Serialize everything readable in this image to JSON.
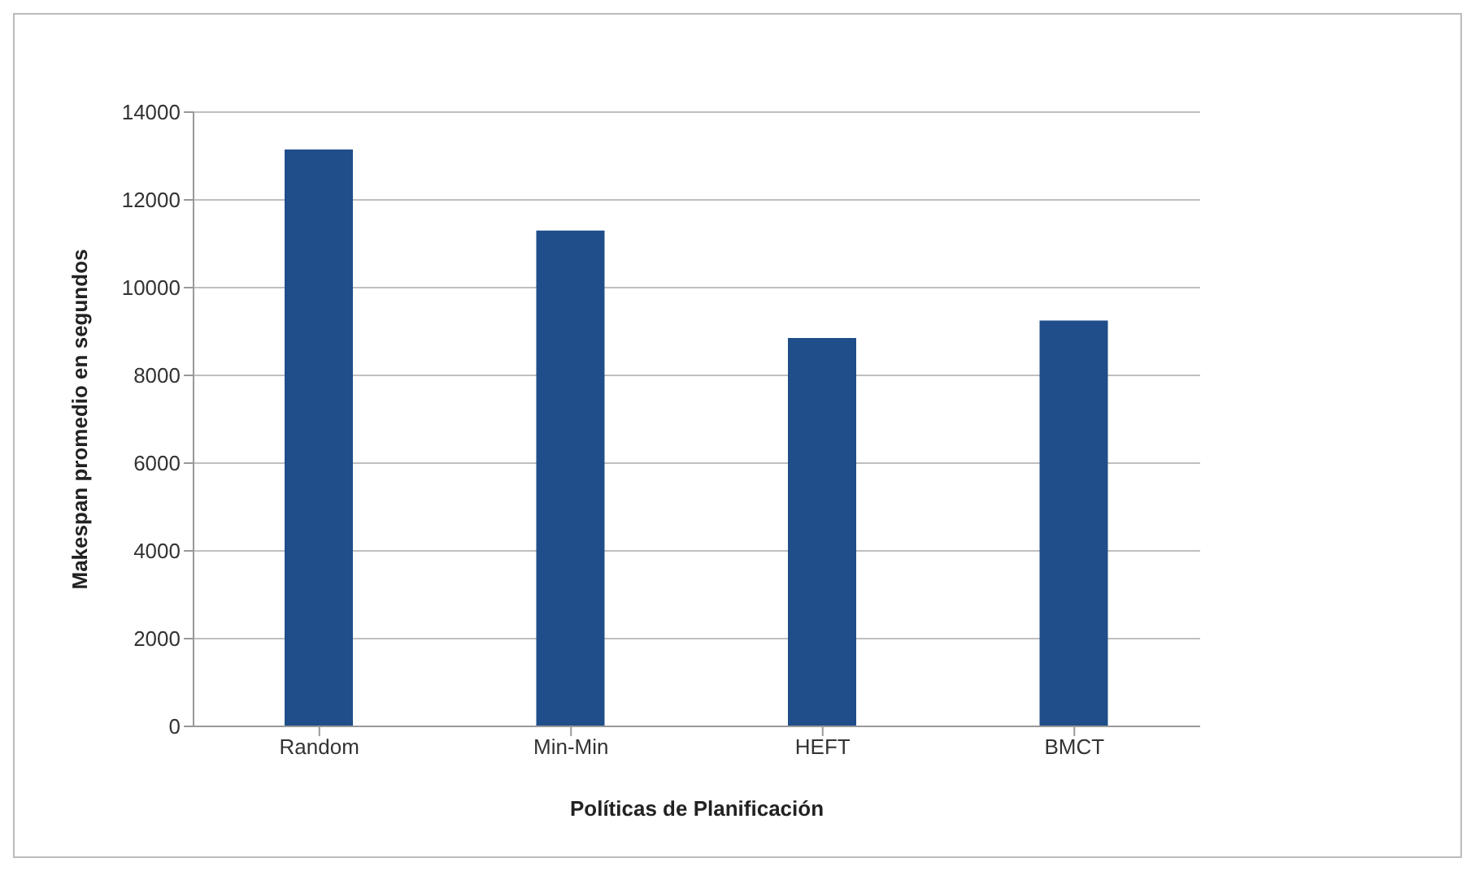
{
  "chart_data": {
    "type": "bar",
    "xlabel": "Políticas de Planificación",
    "ylabel": "Makespan promedio en segundos",
    "categories": [
      "Random",
      "Min-Min",
      "HEFT",
      "BMCT"
    ],
    "values": [
      13150,
      11300,
      8850,
      9250
    ],
    "color": "#1f4e8a",
    "ylim": [
      0,
      14000
    ],
    "yticks": [
      0,
      2000,
      4000,
      6000,
      8000,
      10000,
      12000,
      14000
    ],
    "grid": "y"
  }
}
